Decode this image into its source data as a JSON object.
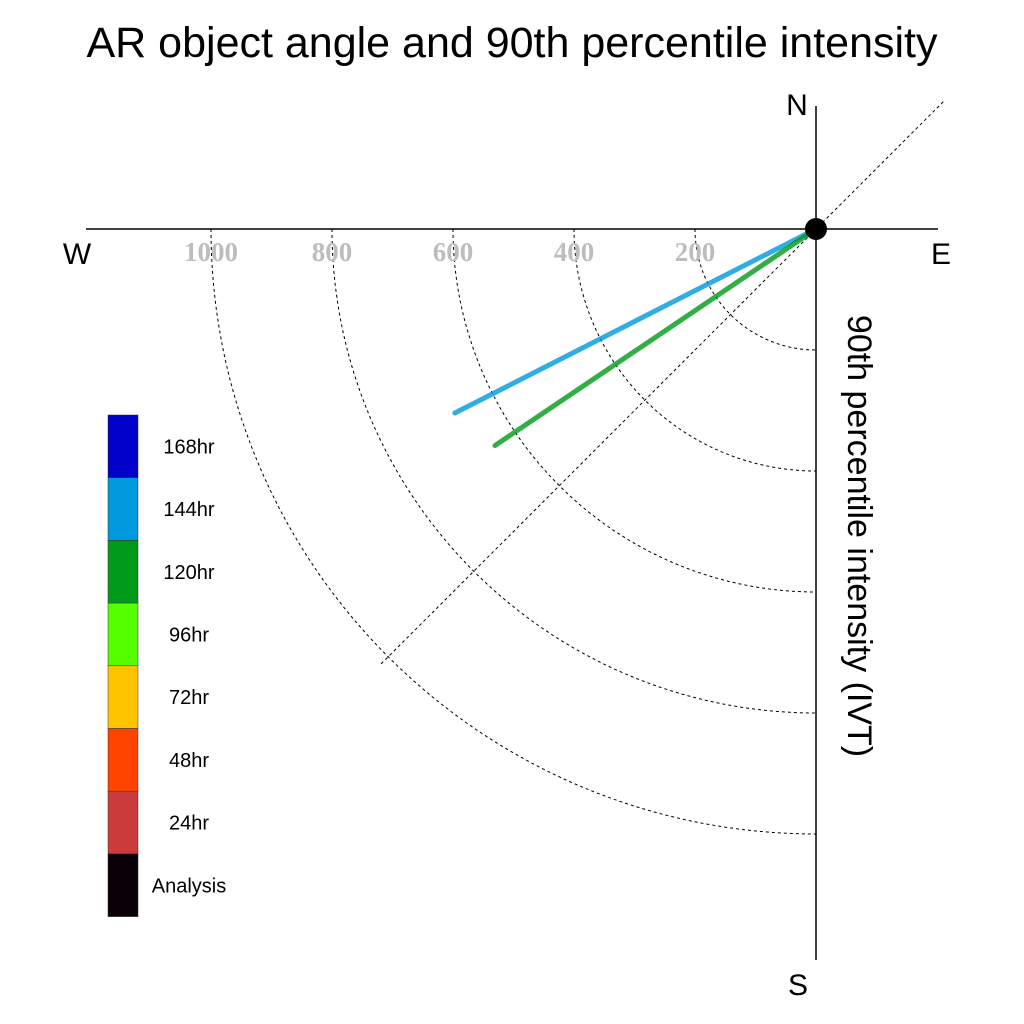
{
  "chart_data": {
    "type": "polar",
    "title": "AR object angle and 90th percentile intensity",
    "ylabel": "90th percentile intensity (IVT)",
    "compass": {
      "north": "N",
      "south": "S",
      "east": "E",
      "west": "W"
    },
    "radial_ticks": [
      200,
      400,
      600,
      800,
      1000
    ],
    "radial_tick_labels": [
      "200",
      "400",
      "600",
      "800",
      "1000"
    ],
    "r_max": 1200,
    "grid": true,
    "diagonal_guide_deg": 45,
    "series": [
      {
        "name": "144hr",
        "angle_deg": 207,
        "value": 670,
        "color": "#0099dd"
      },
      {
        "name": "120hr",
        "angle_deg": 214,
        "value": 640,
        "color": "#009a1a"
      }
    ],
    "legend": {
      "position": "left",
      "entries": [
        {
          "label": "168hr",
          "color": "#0000c8"
        },
        {
          "label": "144hr",
          "color": "#0099dd"
        },
        {
          "label": "120hr",
          "color": "#009a1a"
        },
        {
          "label": "96hr",
          "color": "#55ff00"
        },
        {
          "label": "72hr",
          "color": "#ffc400"
        },
        {
          "label": "48hr",
          "color": "#ff4400"
        },
        {
          "label": "24hr",
          "color": "#cc3b3b"
        },
        {
          "label": "Analysis",
          "color": "#0b0008"
        }
      ]
    },
    "origin_marker_color": "#000000"
  }
}
